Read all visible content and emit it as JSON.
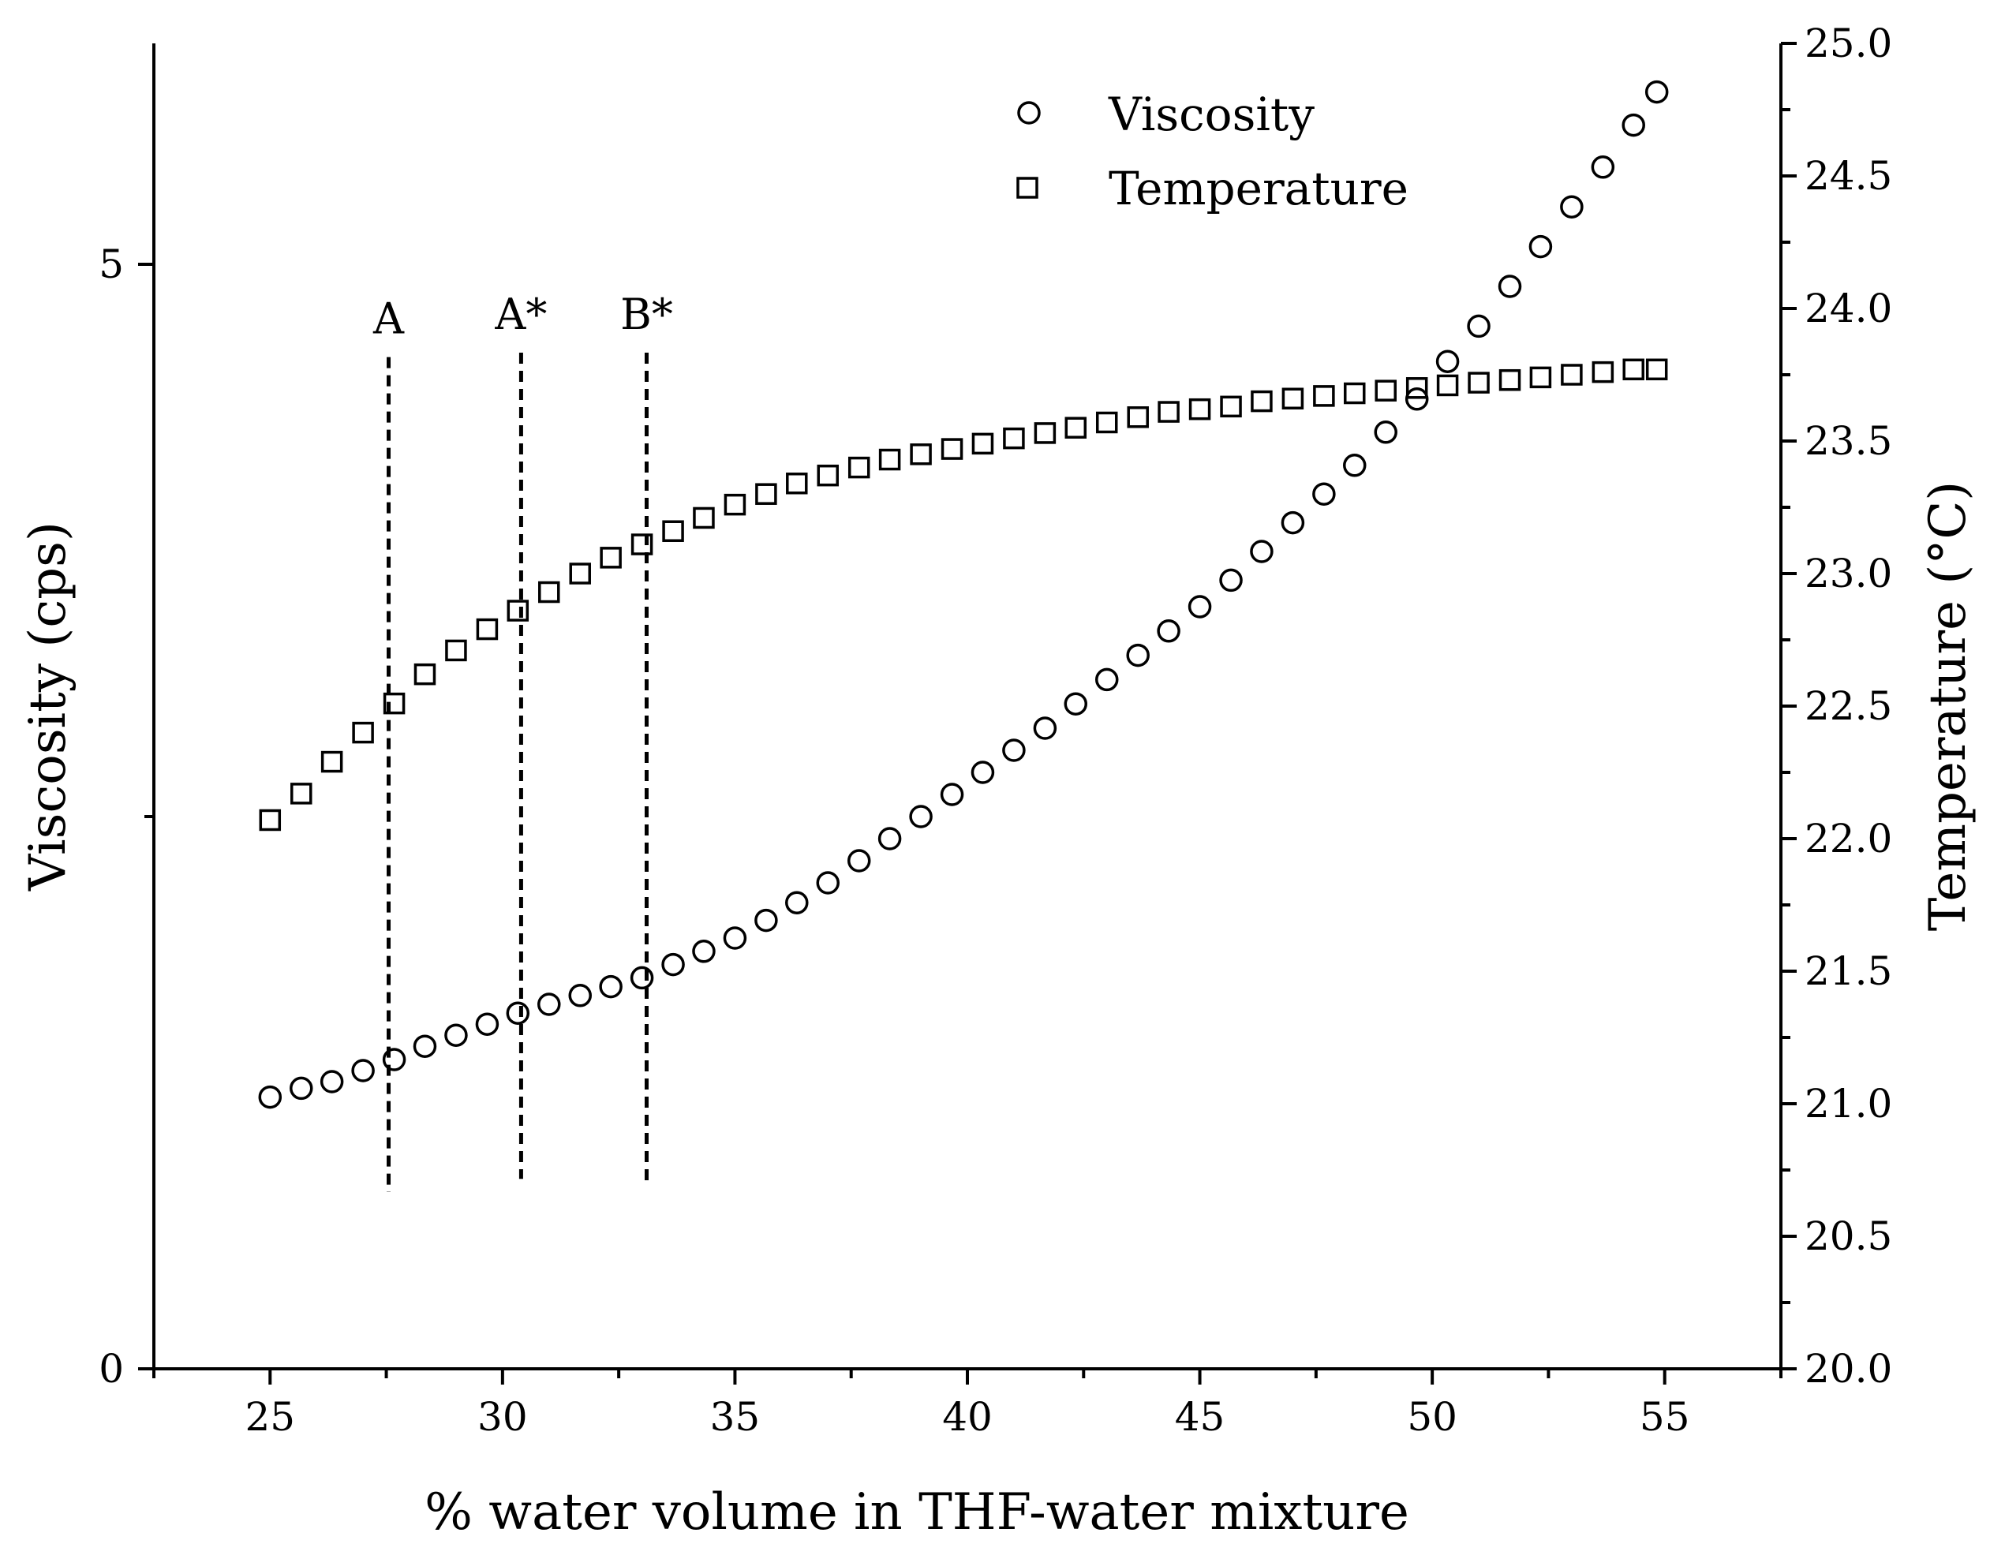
{
  "chart_data": {
    "type": "scatter",
    "xlabel": "% water volume in THF-water mixture",
    "ylabel_left": "Viscosity (cps)",
    "ylabel_right": "Temperature (°C)",
    "xlim": [
      22.5,
      57.5
    ],
    "ylim_left": [
      0,
      6
    ],
    "ylim_right": [
      20.0,
      25.0
    ],
    "x_ticks": [
      25,
      30,
      35,
      40,
      45,
      50,
      55
    ],
    "y_left_ticks": [
      0,
      5
    ],
    "y_right_ticks": [
      20.0,
      20.5,
      21.0,
      21.5,
      22.0,
      22.5,
      23.0,
      23.5,
      24.0,
      24.5,
      25.0
    ],
    "y_right_tick_labels": [
      "20.0",
      "20.5",
      "21.0",
      "21.5",
      "22.0",
      "22.5",
      "23.0",
      "23.5",
      "24.0",
      "24.5",
      "25.0"
    ],
    "legend": {
      "position": "top-right",
      "entries": [
        {
          "marker": "circle",
          "label": "Viscosity"
        },
        {
          "marker": "square",
          "label": "Temperature"
        }
      ]
    },
    "annotations": [
      {
        "label": "A",
        "x": 27.55,
        "viscosity_top": 4.58,
        "viscosity_bottom": 0.8
      },
      {
        "label": "A*",
        "x": 30.4,
        "viscosity_top": 4.6,
        "viscosity_bottom": 0.86
      },
      {
        "label": "B*",
        "x": 33.1,
        "viscosity_top": 4.6,
        "viscosity_bottom": 0.85
      }
    ],
    "series": [
      {
        "name": "Viscosity",
        "axis": "left",
        "marker": "circle",
        "x": [
          25.0,
          25.67,
          26.33,
          27.0,
          27.67,
          28.33,
          29.0,
          29.67,
          30.33,
          31.0,
          31.67,
          32.33,
          33.0,
          33.67,
          34.33,
          35.0,
          35.67,
          36.33,
          37.0,
          37.67,
          38.33,
          39.0,
          39.67,
          40.33,
          41.0,
          41.67,
          42.33,
          43.0,
          43.67,
          44.33,
          45.0,
          45.67,
          46.33,
          47.0,
          47.67,
          48.33,
          49.0,
          49.67,
          50.33,
          51.0,
          51.67,
          52.33,
          53.0,
          53.67,
          54.33,
          54.83
        ],
        "values": [
          1.23,
          1.27,
          1.3,
          1.35,
          1.4,
          1.46,
          1.51,
          1.56,
          1.61,
          1.65,
          1.69,
          1.73,
          1.77,
          1.83,
          1.89,
          1.95,
          2.03,
          2.11,
          2.2,
          2.3,
          2.4,
          2.5,
          2.6,
          2.7,
          2.8,
          2.9,
          3.01,
          3.12,
          3.23,
          3.34,
          3.45,
          3.57,
          3.7,
          3.83,
          3.96,
          4.09,
          4.24,
          4.39,
          4.56,
          4.72,
          4.9,
          5.08,
          5.26,
          5.44,
          5.63,
          5.78
        ]
      },
      {
        "name": "Temperature",
        "axis": "right",
        "marker": "square",
        "x": [
          25.0,
          25.67,
          26.33,
          27.0,
          27.67,
          28.33,
          29.0,
          29.67,
          30.33,
          31.0,
          31.67,
          32.33,
          33.0,
          33.67,
          34.33,
          35.0,
          35.67,
          36.33,
          37.0,
          37.67,
          38.33,
          39.0,
          39.67,
          40.33,
          41.0,
          41.67,
          42.33,
          43.0,
          43.67,
          44.33,
          45.0,
          45.67,
          46.33,
          47.0,
          47.67,
          48.33,
          49.0,
          49.67,
          50.33,
          51.0,
          51.67,
          52.33,
          53.0,
          53.67,
          54.33,
          54.83
        ],
        "values": [
          22.07,
          22.17,
          22.29,
          22.4,
          22.51,
          22.62,
          22.71,
          22.79,
          22.86,
          22.93,
          23.0,
          23.06,
          23.11,
          23.16,
          23.21,
          23.26,
          23.3,
          23.34,
          23.37,
          23.4,
          23.43,
          23.45,
          23.47,
          23.49,
          23.51,
          23.53,
          23.55,
          23.57,
          23.59,
          23.61,
          23.62,
          23.63,
          23.65,
          23.66,
          23.67,
          23.68,
          23.69,
          23.7,
          23.71,
          23.72,
          23.73,
          23.74,
          23.75,
          23.76,
          23.77,
          23.77
        ]
      }
    ]
  }
}
